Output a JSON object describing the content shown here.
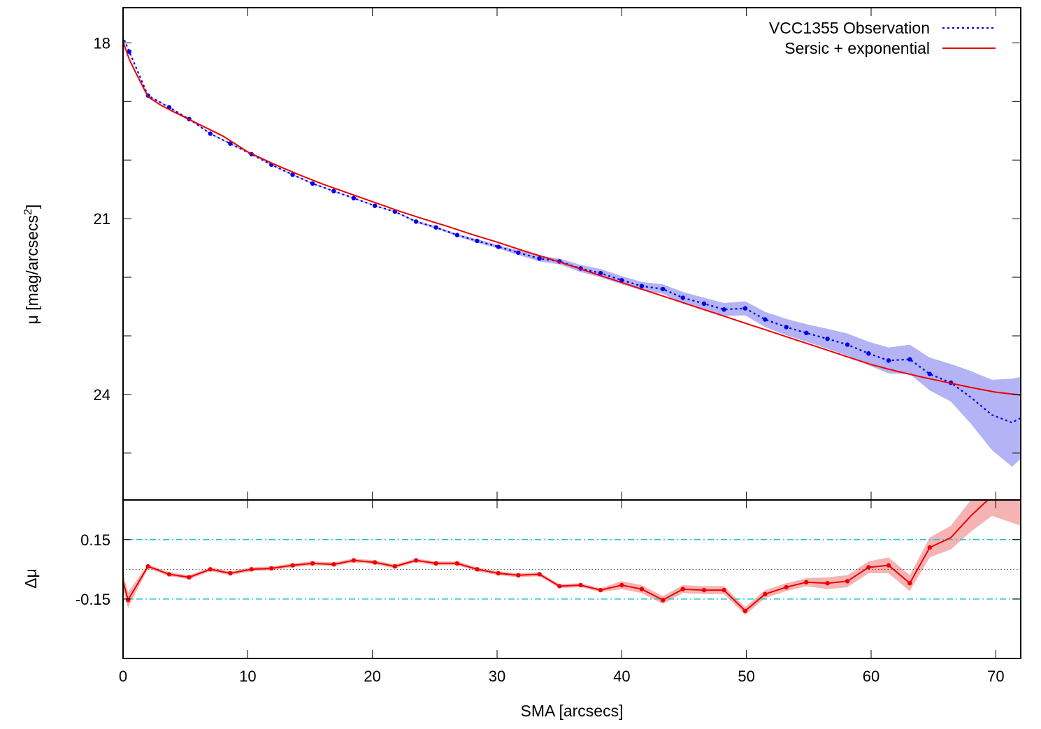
{
  "chart_data": [
    {
      "panel": "profile",
      "type": "line",
      "xlabel": "SMA [arcsecs]",
      "ylabel": "μ [mag/arcsecs",
      "ylabel_sup": "2",
      "ylabel_close": "]",
      "xlim": [
        0,
        72
      ],
      "ylim": [
        25.8,
        17.4
      ],
      "y_inverted": true,
      "yticks": [
        18,
        19,
        20,
        21,
        22,
        23,
        24,
        25
      ],
      "ytick_labels": [
        "18",
        "",
        "",
        "21",
        "",
        "",
        "24",
        ""
      ],
      "xticks": [
        10,
        20,
        30,
        40,
        50,
        60,
        70
      ],
      "legend_position": "top-right",
      "series": [
        {
          "name": "VCC1355 Observation",
          "style": "dotted-with-points",
          "color": "#0000ee",
          "band_color": "#b3b3f5",
          "x": [
            0.1,
            0.5,
            2.0,
            3.7,
            5.3,
            7.0,
            8.6,
            10.3,
            11.9,
            13.6,
            15.2,
            16.9,
            18.5,
            20.2,
            21.8,
            23.5,
            25.1,
            26.8,
            28.4,
            30.1,
            31.7,
            33.4,
            35.0,
            36.7,
            38.3,
            40.0,
            41.6,
            43.3,
            44.9,
            46.6,
            48.2,
            49.9,
            51.5,
            53.2,
            54.8,
            56.5,
            58.1,
            59.8,
            61.4,
            63.1,
            64.7,
            66.4,
            68.0,
            69.7,
            71.3,
            72.0
          ],
          "y": [
            17.95,
            18.15,
            18.9,
            19.1,
            19.3,
            19.55,
            19.72,
            19.9,
            20.08,
            20.25,
            20.4,
            20.53,
            20.65,
            20.78,
            20.88,
            21.05,
            21.15,
            21.28,
            21.38,
            21.48,
            21.58,
            21.68,
            21.73,
            21.85,
            21.93,
            22.05,
            22.15,
            22.2,
            22.35,
            22.45,
            22.55,
            22.53,
            22.72,
            22.85,
            22.95,
            23.05,
            23.15,
            23.3,
            23.42,
            23.4,
            23.65,
            23.8,
            24.05,
            24.35,
            24.48,
            24.4
          ],
          "err": [
            0.01,
            0.01,
            0.01,
            0.01,
            0.01,
            0.01,
            0.01,
            0.01,
            0.01,
            0.01,
            0.01,
            0.01,
            0.01,
            0.01,
            0.01,
            0.02,
            0.02,
            0.02,
            0.03,
            0.03,
            0.04,
            0.05,
            0.05,
            0.06,
            0.07,
            0.07,
            0.07,
            0.08,
            0.1,
            0.1,
            0.11,
            0.12,
            0.13,
            0.14,
            0.15,
            0.17,
            0.19,
            0.2,
            0.22,
            0.25,
            0.28,
            0.32,
            0.45,
            0.6,
            0.75,
            0.7
          ]
        },
        {
          "name": "Sersic + exponential",
          "style": "solid",
          "color": "#ee0000",
          "x": [
            0.0,
            0.5,
            1.0,
            2.0,
            3.0,
            4.0,
            6.0,
            8.0,
            10.0,
            12.0,
            14.0,
            16.0,
            18.0,
            20.0,
            22.0,
            24.0,
            26.0,
            28.0,
            30.0,
            32.0,
            34.0,
            36.0,
            38.0,
            40.0,
            42.0,
            44.0,
            46.0,
            48.0,
            50.0,
            52.0,
            54.0,
            56.0,
            58.0,
            60.0,
            62.0,
            64.0,
            66.0,
            68.0,
            70.0,
            72.0
          ],
          "y": [
            17.98,
            18.28,
            18.5,
            18.92,
            19.06,
            19.17,
            19.38,
            19.59,
            19.86,
            20.06,
            20.24,
            20.41,
            20.56,
            20.71,
            20.86,
            21.0,
            21.13,
            21.27,
            21.4,
            21.54,
            21.67,
            21.81,
            21.95,
            22.09,
            22.23,
            22.37,
            22.51,
            22.65,
            22.79,
            22.93,
            23.07,
            23.21,
            23.35,
            23.49,
            23.6,
            23.7,
            23.79,
            23.88,
            23.96,
            24.01
          ]
        }
      ]
    },
    {
      "panel": "residuals",
      "type": "line",
      "ylabel": "Δμ",
      "xlabel": "SMA [arcsecs]",
      "xlim": [
        0,
        72
      ],
      "ylim": [
        -0.45,
        0.35
      ],
      "yticks": [
        0.15,
        -0.15
      ],
      "ytick_labels": [
        "0.15",
        "-0.15"
      ],
      "xticks": [
        0,
        10,
        20,
        30,
        40,
        50,
        60,
        70
      ],
      "xtick_labels": [
        "0",
        "10",
        "20",
        "30",
        "40",
        "50",
        "60",
        "70"
      ],
      "zero_line": 0.0,
      "reference_lines": [
        0.15,
        -0.15
      ],
      "series": [
        {
          "name": "",
          "style": "line-with-points",
          "color": "#ee0000",
          "band_color": "#f5b3b3",
          "x": [
            0.0,
            0.4,
            2.0,
            3.7,
            5.3,
            7.0,
            8.6,
            10.3,
            11.9,
            13.6,
            15.2,
            16.9,
            18.5,
            20.2,
            21.8,
            23.5,
            25.1,
            26.8,
            28.4,
            30.1,
            31.7,
            33.4,
            35.0,
            36.7,
            38.3,
            40.0,
            41.6,
            43.3,
            44.9,
            46.6,
            48.2,
            49.9,
            51.5,
            53.2,
            54.8,
            56.5,
            58.1,
            59.8,
            61.4,
            63.1,
            64.7,
            66.4,
            68.0,
            69.7,
            72.0
          ],
          "y": [
            -0.06,
            -0.155,
            0.015,
            -0.025,
            -0.04,
            0.0,
            -0.02,
            0.0,
            0.005,
            0.02,
            0.03,
            0.025,
            0.045,
            0.035,
            0.015,
            0.045,
            0.03,
            0.03,
            0.0,
            -0.02,
            -0.03,
            -0.025,
            -0.085,
            -0.08,
            -0.105,
            -0.08,
            -0.1,
            -0.155,
            -0.1,
            -0.105,
            -0.105,
            -0.21,
            -0.125,
            -0.09,
            -0.065,
            -0.07,
            -0.06,
            0.01,
            0.02,
            -0.07,
            0.11,
            0.16,
            0.27,
            0.37,
            0.37
          ],
          "err": [
            0.04,
            0.04,
            0.01,
            0.01,
            0.01,
            0.01,
            0.01,
            0.01,
            0.01,
            0.01,
            0.01,
            0.01,
            0.01,
            0.01,
            0.01,
            0.01,
            0.01,
            0.01,
            0.01,
            0.01,
            0.01,
            0.01,
            0.01,
            0.01,
            0.01,
            0.02,
            0.02,
            0.02,
            0.02,
            0.02,
            0.02,
            0.02,
            0.02,
            0.02,
            0.02,
            0.03,
            0.03,
            0.03,
            0.04,
            0.04,
            0.05,
            0.06,
            0.08,
            0.1,
            0.15
          ]
        }
      ]
    }
  ]
}
